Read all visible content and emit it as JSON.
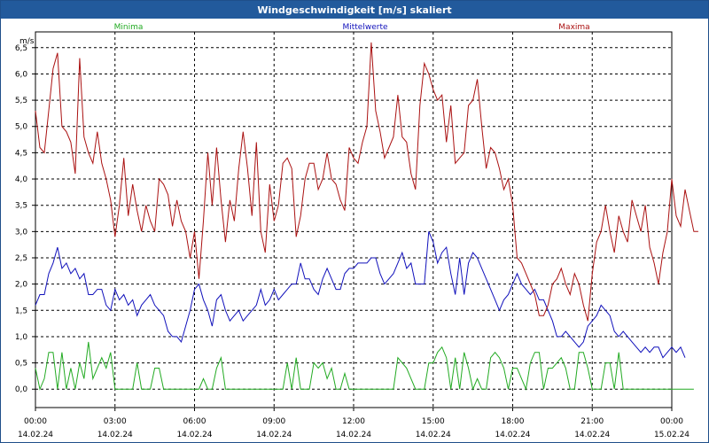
{
  "window": {
    "title": "Windgeschwindigkeit [m/s] skaliert"
  },
  "chart_data": {
    "type": "line",
    "title": "Windgeschwindigkeit [m/s] skaliert",
    "ylabel": "m/s",
    "ylim": [
      -0.35,
      6.8
    ],
    "yticks": [
      "0,0",
      "0,5",
      "1,0",
      "1,5",
      "2,0",
      "2,5",
      "3,0",
      "3,5",
      "4,0",
      "4,5",
      "5,0",
      "5,5",
      "6,0",
      "6,5"
    ],
    "xlim_hours": [
      0,
      24
    ],
    "xticks": [
      {
        "time": "00:00",
        "date": "14.02.24"
      },
      {
        "time": "03:00",
        "date": "14.02.24"
      },
      {
        "time": "06:00",
        "date": "14.02.24"
      },
      {
        "time": "09:00",
        "date": "14.02.24"
      },
      {
        "time": "12:00",
        "date": "14.02.24"
      },
      {
        "time": "15:00",
        "date": "14.02.24"
      },
      {
        "time": "18:00",
        "date": "14.02.24"
      },
      {
        "time": "21:00",
        "date": "14.02.24"
      },
      {
        "time": "00:00",
        "date": "15.02.24"
      }
    ],
    "grid": true,
    "legend_position": "top",
    "sample_interval_minutes": 10,
    "series": [
      {
        "name": "Minima",
        "color": "#22aa22",
        "values": [
          0.4,
          0.0,
          0.2,
          0.7,
          0.7,
          0.0,
          0.7,
          0.0,
          0.4,
          0.0,
          0.5,
          0.2,
          0.9,
          0.2,
          0.4,
          0.6,
          0.4,
          0.7,
          0.0,
          0.0,
          0.0,
          0.0,
          0.0,
          0.5,
          0.0,
          0.0,
          0.0,
          0.4,
          0.4,
          0.0,
          0.0,
          0.0,
          0.0,
          0.0,
          0.0,
          0.0,
          0.0,
          0.0,
          0.2,
          0.0,
          0.0,
          0.4,
          0.6,
          0.0,
          0.0,
          0.0,
          0.0,
          0.0,
          0.0,
          0.0,
          0.0,
          0.0,
          0.0,
          0.0,
          0.0,
          0.0,
          0.0,
          0.5,
          0.0,
          0.6,
          0.0,
          0.0,
          0.0,
          0.5,
          0.4,
          0.5,
          0.2,
          0.4,
          0.0,
          0.0,
          0.3,
          0.0,
          0.0,
          0.0,
          0.0,
          0.0,
          0.0,
          0.0,
          0.0,
          0.0,
          0.0,
          0.0,
          0.6,
          0.5,
          0.4,
          0.2,
          0.0,
          0.0,
          0.0,
          0.5,
          0.5,
          0.7,
          0.8,
          0.6,
          0.0,
          0.6,
          0.0,
          0.7,
          0.4,
          0.0,
          0.2,
          0.0,
          0.0,
          0.6,
          0.7,
          0.6,
          0.4,
          0.0,
          0.4,
          0.4,
          0.2,
          0.0,
          0.5,
          0.7,
          0.7,
          0.0,
          0.4,
          0.4,
          0.5,
          0.6,
          0.4,
          0.0,
          0.0,
          0.7,
          0.7,
          0.4,
          0.0,
          0.0,
          0.0,
          0.5,
          0.5,
          0.0,
          0.7,
          0.0,
          0.0,
          0.0,
          0.0,
          0.0,
          0.0,
          0.0,
          0.0,
          0.0,
          0.0,
          0.0,
          0.0,
          0.0,
          0.0,
          0.0,
          0.0,
          0.0
        ]
      },
      {
        "name": "Mittelwerte",
        "color": "#1111bb",
        "values": [
          1.6,
          1.8,
          1.8,
          2.2,
          2.4,
          2.7,
          2.3,
          2.4,
          2.2,
          2.3,
          2.1,
          2.2,
          1.8,
          1.8,
          1.9,
          1.9,
          1.6,
          1.5,
          1.9,
          1.7,
          1.8,
          1.6,
          1.7,
          1.4,
          1.6,
          1.7,
          1.8,
          1.6,
          1.5,
          1.4,
          1.1,
          1.0,
          1.0,
          0.9,
          1.2,
          1.5,
          1.9,
          2.0,
          1.7,
          1.5,
          1.2,
          1.7,
          1.8,
          1.5,
          1.3,
          1.4,
          1.5,
          1.3,
          1.4,
          1.5,
          1.6,
          1.9,
          1.6,
          1.7,
          1.9,
          1.7,
          1.8,
          1.9,
          2.0,
          2.0,
          2.4,
          2.1,
          2.1,
          1.9,
          1.8,
          2.1,
          2.3,
          2.1,
          1.9,
          1.9,
          2.2,
          2.3,
          2.3,
          2.4,
          2.4,
          2.4,
          2.5,
          2.5,
          2.2,
          2.0,
          2.1,
          2.2,
          2.4,
          2.6,
          2.3,
          2.4,
          2.0,
          2.0,
          2.0,
          3.0,
          2.8,
          2.4,
          2.6,
          2.7,
          2.2,
          1.8,
          2.5,
          1.8,
          2.4,
          2.6,
          2.5,
          2.3,
          2.1,
          1.9,
          1.7,
          1.5,
          1.7,
          1.8,
          2.0,
          2.2,
          2.0,
          1.9,
          1.8,
          1.9,
          1.7,
          1.7,
          1.5,
          1.3,
          1.0,
          1.0,
          1.1,
          1.0,
          0.9,
          0.8,
          0.9,
          1.2,
          1.3,
          1.4,
          1.6,
          1.5,
          1.4,
          1.1,
          1.0,
          1.1,
          1.0,
          0.9,
          0.8,
          0.7,
          0.8,
          0.7,
          0.8,
          0.8,
          0.6,
          0.7,
          0.8,
          0.7,
          0.8,
          0.6
        ]
      },
      {
        "name": "Maxima",
        "color": "#aa1111",
        "values": [
          5.3,
          4.6,
          4.5,
          5.3,
          6.1,
          6.4,
          5.0,
          4.9,
          4.7,
          4.1,
          6.3,
          4.8,
          4.5,
          4.3,
          4.9,
          4.3,
          4.0,
          3.6,
          2.9,
          3.5,
          4.4,
          3.3,
          3.9,
          3.4,
          3.0,
          3.5,
          3.2,
          3.0,
          4.0,
          3.9,
          3.7,
          3.1,
          3.6,
          3.2,
          3.0,
          2.5,
          3.0,
          2.1,
          3.2,
          4.5,
          3.5,
          4.6,
          3.6,
          2.8,
          3.6,
          3.2,
          4.2,
          4.9,
          4.2,
          3.3,
          4.7,
          3.0,
          2.6,
          3.9,
          3.2,
          3.5,
          4.3,
          4.4,
          4.2,
          2.9,
          3.3,
          4.0,
          4.3,
          4.3,
          3.8,
          4.0,
          4.5,
          4.0,
          3.9,
          3.6,
          3.4,
          4.6,
          4.4,
          4.3,
          4.7,
          5.0,
          6.6,
          5.3,
          4.9,
          4.4,
          4.6,
          4.8,
          5.6,
          4.8,
          4.7,
          4.1,
          3.8,
          5.4,
          6.2,
          6.0,
          5.7,
          5.5,
          5.6,
          4.7,
          5.4,
          4.3,
          4.4,
          4.5,
          5.4,
          5.5,
          5.9,
          5.0,
          4.2,
          4.6,
          4.5,
          4.2,
          3.8,
          4.0,
          3.5,
          2.5,
          2.4,
          2.2,
          2.0,
          1.8,
          1.4,
          1.4,
          1.6,
          2.0,
          2.1,
          2.3,
          2.0,
          1.8,
          2.2,
          2.0,
          1.6,
          1.3,
          2.2,
          2.8,
          3.0,
          3.5,
          3.0,
          2.6,
          3.3,
          3.0,
          2.8,
          3.6,
          3.3,
          3.0,
          3.5,
          2.7,
          2.4,
          2.0,
          2.6,
          3.0,
          4.0,
          3.3,
          3.1,
          3.8,
          3.4,
          3.0,
          3.0
        ]
      }
    ]
  }
}
